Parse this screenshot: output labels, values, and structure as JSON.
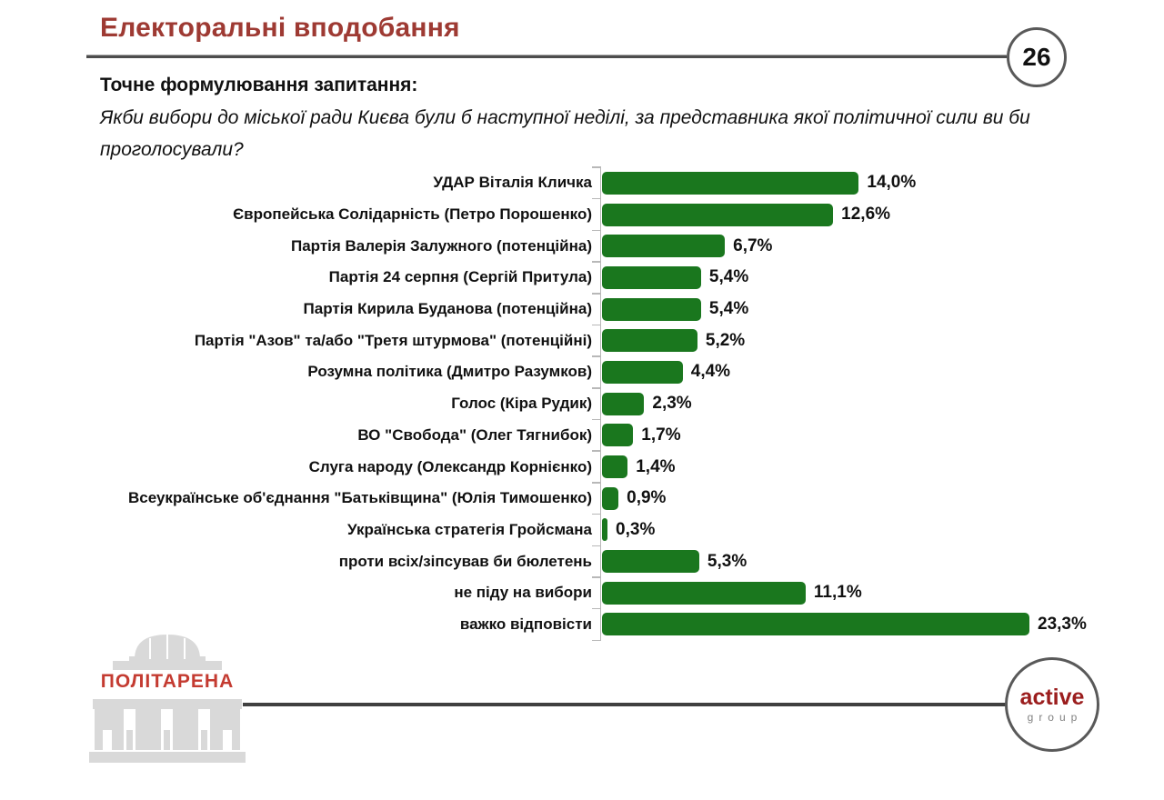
{
  "slide": {
    "title": "Електоральні вподобання",
    "page_number": "26"
  },
  "question": {
    "heading": "Точне формулювання запитання:",
    "text": "Якби вибори до міської ради Києва були б наступної неділі, за представника якої політичної сили ви би проголосували?"
  },
  "chart_data": {
    "type": "bar",
    "orientation": "horizontal",
    "title": "",
    "xlabel": "",
    "ylabel": "",
    "xlim": [
      0,
      24
    ],
    "grid": false,
    "legend": false,
    "bar_color": "#1a771e",
    "categories": [
      "УДАР Віталія Кличка",
      "Європейська Солідарність (Петро Порошенко)",
      "Партія Валерія Залужного (потенційна)",
      "Партія 24 серпня (Сергій Притула)",
      "Партія Кирила Буданова (потенційна)",
      "Партія \"Азов\" та/або \"Третя штурмова\" (потенційні)",
      "Розумна політика (Дмитро Разумков)",
      "Голос (Кіра Рудик)",
      "ВО \"Свобода\" (Олег Тягнибок)",
      "Слуга народу (Олександр Корнієнко)",
      "Всеукраїнське об'єднання \"Батьківщина\" (Юлія Тимошенко)",
      "Українська стратегія Гройсмана",
      "проти всіх/зіпсував би бюлетень",
      "не піду на вибори",
      "важко відповісти"
    ],
    "values": [
      14.0,
      12.6,
      6.7,
      5.4,
      5.4,
      5.2,
      4.4,
      2.3,
      1.7,
      1.4,
      0.9,
      0.3,
      5.3,
      11.1,
      23.3
    ],
    "value_labels": [
      "14,0%",
      "12,6%",
      "6,7%",
      "5,4%",
      "5,4%",
      "5,2%",
      "4,4%",
      "2,3%",
      "1,7%",
      "1,4%",
      "0,9%",
      "0,3%",
      "5,3%",
      "11,1%",
      "23,3%"
    ]
  },
  "footer": {
    "politarena_logo_text": "ПОЛІТАРЕНА",
    "active_group": {
      "line1": "active",
      "line2": "group"
    }
  },
  "colors": {
    "title_red": "#9e3a33",
    "bar_green": "#1a771e",
    "logo_red": "#c43b31",
    "active_red": "#9b1d1d",
    "rule_dark": "#404040",
    "circle_border": "#595959",
    "axis_gray": "#b8b8b8",
    "building_gray": "#d9d9d9"
  }
}
